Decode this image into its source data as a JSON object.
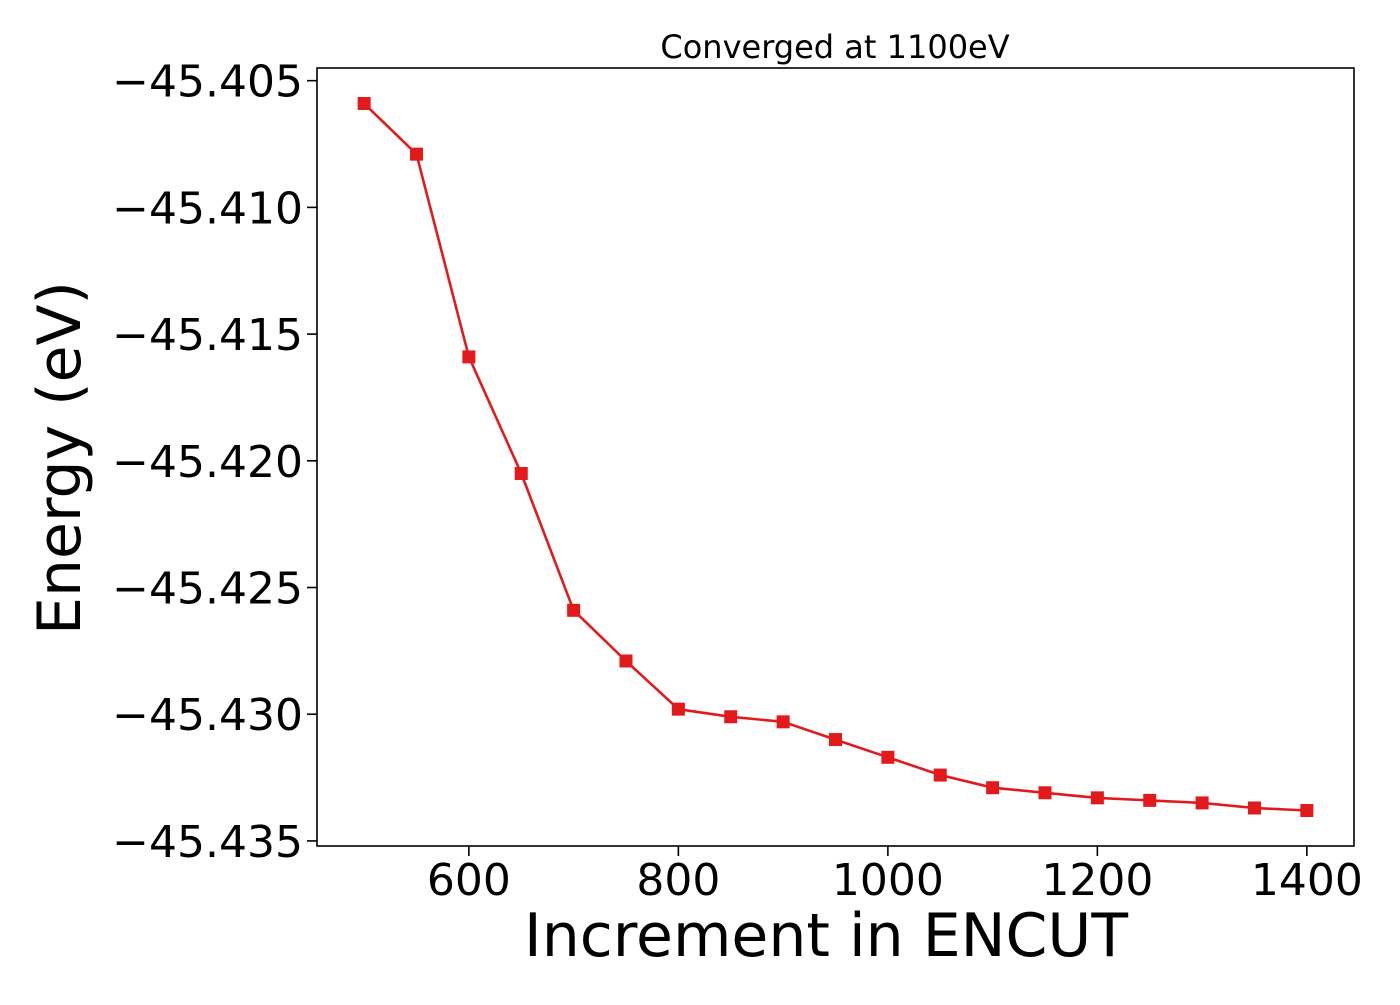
{
  "chart_data": {
    "type": "line",
    "title": "Converged at 1100eV",
    "xlabel": "Increment in ENCUT",
    "ylabel": "Energy (eV)",
    "xlim": [
      455,
      1445
    ],
    "ylim": [
      -45.4352,
      -45.4045
    ],
    "xticks": [
      600,
      800,
      1000,
      1200,
      1400
    ],
    "xtick_labels": [
      "600",
      "800",
      "1000",
      "1200",
      "1400"
    ],
    "yticks": [
      -45.405,
      -45.41,
      -45.415,
      -45.42,
      -45.425,
      -45.43,
      -45.435
    ],
    "ytick_labels": [
      "−45.405",
      "−45.410",
      "−45.415",
      "−45.420",
      "−45.425",
      "−45.430",
      "−45.435"
    ],
    "grid": false,
    "legend": "none",
    "series": [
      {
        "color": "#e31a1c",
        "marker": "square",
        "x": [
          500,
          550,
          600,
          650,
          700,
          750,
          800,
          850,
          900,
          950,
          1000,
          1050,
          1100,
          1150,
          1200,
          1250,
          1300,
          1350,
          1400
        ],
        "y": [
          -45.4059,
          -45.4079,
          -45.4159,
          -45.4205,
          -45.4259,
          -45.4279,
          -45.4298,
          -45.4301,
          -45.4303,
          -45.431,
          -45.4317,
          -45.4324,
          -45.4329,
          -45.4331,
          -45.4333,
          -45.4334,
          -45.4335,
          -45.4337,
          -45.4338
        ]
      }
    ]
  }
}
